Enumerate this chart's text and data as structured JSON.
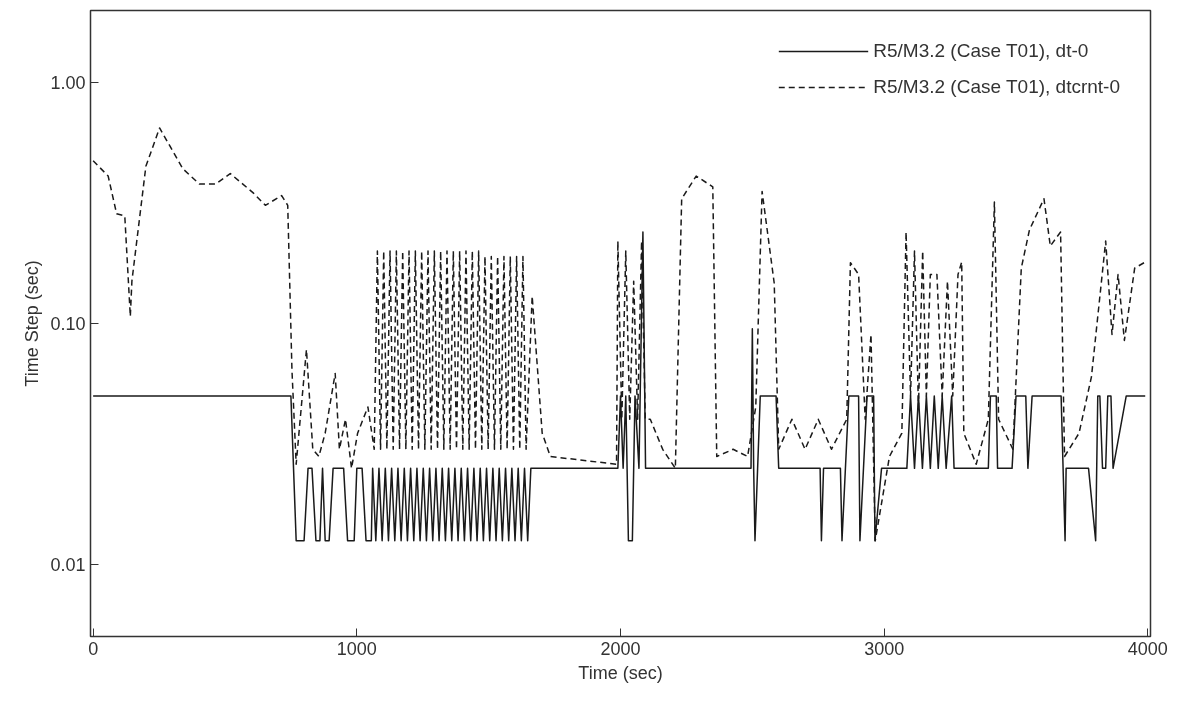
{
  "chart_data": {
    "type": "line",
    "xlabel": "Time (sec)",
    "ylabel": "Time Step (sec)",
    "log": "y",
    "grid": false,
    "legend": "top right",
    "xlim": [
      -10,
      4010
    ],
    "xticks": [
      0,
      1000,
      2000,
      3000,
      4000
    ],
    "ylim": [
      0.005,
      2
    ],
    "yticks": [
      {
        "value": 0.01,
        "label": "0.01"
      },
      {
        "value": 0.1,
        "label": "0.10"
      },
      {
        "value": 1,
        "label": "1.00"
      }
    ],
    "series": [
      {
        "name": "R5/M3.2 (Case T01), dt-0",
        "color": "#1a1a1a",
        "line_style": "solid",
        "x": [
          0,
          750,
          770,
          800,
          815,
          830,
          845,
          860,
          870,
          880,
          895,
          910,
          950,
          965,
          990,
          1000,
          1020,
          1035,
          1055,
          1060,
          1072,
          1084,
          1096,
          1108,
          1120,
          1132,
          1144,
          1156,
          1168,
          1180,
          1192,
          1204,
          1216,
          1228,
          1240,
          1252,
          1264,
          1276,
          1288,
          1300,
          1312,
          1324,
          1336,
          1348,
          1360,
          1372,
          1384,
          1396,
          1408,
          1420,
          1432,
          1444,
          1456,
          1468,
          1480,
          1492,
          1504,
          1516,
          1528,
          1540,
          1552,
          1564,
          1576,
          1588,
          1600,
          1612,
          1624,
          1636,
          1648,
          1660,
          1990,
          2000,
          2010,
          2020,
          2030,
          2045,
          2055,
          2070,
          2085,
          2095,
          2495,
          2500,
          2505,
          2510,
          2530,
          2590,
          2600,
          2757,
          2762,
          2770,
          2834,
          2840,
          2866,
          2903,
          2908,
          2935,
          2960,
          2965,
          2990,
          3086,
          3100,
          3115,
          3130,
          3145,
          3160,
          3175,
          3190,
          3205,
          3220,
          3235,
          3256,
          3265,
          3395,
          3403,
          3425,
          3430,
          3485,
          3500,
          3537,
          3545,
          3561,
          3671,
          3686,
          3690,
          3775,
          3802,
          3810,
          3818,
          3828,
          3840,
          3848,
          3860,
          3868,
          3918,
          3990
        ],
        "values": [
          0.05,
          0.05,
          0.0125,
          0.0125,
          0.025,
          0.025,
          0.0125,
          0.0125,
          0.025,
          0.0125,
          0.0125,
          0.025,
          0.025,
          0.0125,
          0.0125,
          0.025,
          0.025,
          0.0125,
          0.0125,
          0.025,
          0.0125,
          0.025,
          0.0125,
          0.025,
          0.0125,
          0.025,
          0.0125,
          0.025,
          0.0125,
          0.025,
          0.0125,
          0.025,
          0.0125,
          0.025,
          0.0125,
          0.025,
          0.0125,
          0.025,
          0.0125,
          0.025,
          0.0125,
          0.025,
          0.0125,
          0.025,
          0.0125,
          0.025,
          0.0125,
          0.025,
          0.0125,
          0.025,
          0.0125,
          0.025,
          0.0125,
          0.025,
          0.0125,
          0.025,
          0.0125,
          0.025,
          0.0125,
          0.025,
          0.0125,
          0.025,
          0.0125,
          0.025,
          0.0125,
          0.025,
          0.0125,
          0.025,
          0.0125,
          0.025,
          0.025,
          0.05,
          0.025,
          0.05,
          0.0125,
          0.0125,
          0.05,
          0.025,
          0.24,
          0.025,
          0.025,
          0.095,
          0.025,
          0.0125,
          0.05,
          0.05,
          0.025,
          0.025,
          0.0125,
          0.025,
          0.025,
          0.0125,
          0.05,
          0.05,
          0.0125,
          0.05,
          0.05,
          0.0125,
          0.025,
          0.025,
          0.05,
          0.025,
          0.05,
          0.025,
          0.05,
          0.025,
          0.05,
          0.025,
          0.05,
          0.025,
          0.05,
          0.025,
          0.025,
          0.05,
          0.05,
          0.025,
          0.025,
          0.05,
          0.05,
          0.025,
          0.05,
          0.05,
          0.0125,
          0.025,
          0.025,
          0.0125,
          0.05,
          0.05,
          0.025,
          0.025,
          0.05,
          0.05,
          0.025,
          0.05,
          0.05
        ]
      },
      {
        "name": "R5/M3.2 (Case T01), dtcrnt-0",
        "color": "#1a1a1a",
        "line_style": "dashed",
        "x": [
          0,
          57,
          89,
          120,
          141,
          147,
          200,
          252,
          340,
          403,
          465,
          520,
          606,
          653,
          715,
          738,
          754,
          770,
          809,
          833,
          856,
          880,
          918,
          934,
          957,
          980,
          1003,
          1042,
          1066,
          1078,
          1090,
          1102,
          1114,
          1126,
          1138,
          1150,
          1162,
          1174,
          1186,
          1198,
          1210,
          1222,
          1234,
          1246,
          1258,
          1270,
          1282,
          1294,
          1306,
          1318,
          1330,
          1342,
          1354,
          1366,
          1378,
          1390,
          1402,
          1414,
          1426,
          1438,
          1450,
          1462,
          1474,
          1486,
          1498,
          1510,
          1522,
          1534,
          1546,
          1558,
          1570,
          1582,
          1594,
          1606,
          1618,
          1630,
          1642,
          1665,
          1703,
          1734,
          1985,
          1990,
          2005,
          2020,
          2035,
          2050,
          2065,
          2080,
          2094,
          2113,
          2160,
          2208,
          2232,
          2287,
          2350,
          2365,
          2427,
          2482,
          2513,
          2537,
          2583,
          2600,
          2650,
          2700,
          2750,
          2800,
          2858,
          2872,
          2903,
          2928,
          2950,
          2966,
          3020,
          3067,
          3083,
          3100,
          3115,
          3130,
          3146,
          3160,
          3175,
          3200,
          3220,
          3240,
          3260,
          3280,
          3294,
          3302,
          3349,
          3395,
          3418,
          3434,
          3488,
          3520,
          3551,
          3606,
          3630,
          3669,
          3684,
          3739,
          3786,
          3840,
          3864,
          3887,
          3911,
          3950,
          3990
        ],
        "values": [
          0.475,
          0.41,
          0.286,
          0.28,
          0.107,
          0.15,
          0.45,
          0.65,
          0.44,
          0.38,
          0.38,
          0.42,
          0.35,
          0.31,
          0.34,
          0.31,
          0.064,
          0.026,
          0.078,
          0.03,
          0.028,
          0.035,
          0.062,
          0.03,
          0.04,
          0.025,
          0.035,
          0.045,
          0.03,
          0.2,
          0.03,
          0.2,
          0.03,
          0.2,
          0.03,
          0.2,
          0.03,
          0.2,
          0.03,
          0.2,
          0.03,
          0.2,
          0.03,
          0.2,
          0.03,
          0.2,
          0.03,
          0.2,
          0.03,
          0.2,
          0.03,
          0.2,
          0.03,
          0.2,
          0.03,
          0.2,
          0.03,
          0.2,
          0.03,
          0.2,
          0.03,
          0.2,
          0.03,
          0.19,
          0.03,
          0.19,
          0.03,
          0.19,
          0.03,
          0.19,
          0.03,
          0.19,
          0.03,
          0.19,
          0.03,
          0.19,
          0.03,
          0.13,
          0.035,
          0.028,
          0.026,
          0.22,
          0.04,
          0.2,
          0.04,
          0.15,
          0.04,
          0.22,
          0.04,
          0.04,
          0.03,
          0.025,
          0.33,
          0.41,
          0.37,
          0.028,
          0.03,
          0.028,
          0.045,
          0.354,
          0.147,
          0.03,
          0.04,
          0.03,
          0.04,
          0.03,
          0.04,
          0.179,
          0.16,
          0.04,
          0.09,
          0.0125,
          0.028,
          0.035,
          0.24,
          0.05,
          0.2,
          0.045,
          0.2,
          0.05,
          0.16,
          0.16,
          0.05,
          0.15,
          0.05,
          0.16,
          0.18,
          0.035,
          0.026,
          0.04,
          0.32,
          0.04,
          0.03,
          0.17,
          0.245,
          0.33,
          0.21,
          0.24,
          0.028,
          0.035,
          0.06,
          0.22,
          0.09,
          0.16,
          0.085,
          0.17,
          0.18
        ]
      }
    ]
  }
}
